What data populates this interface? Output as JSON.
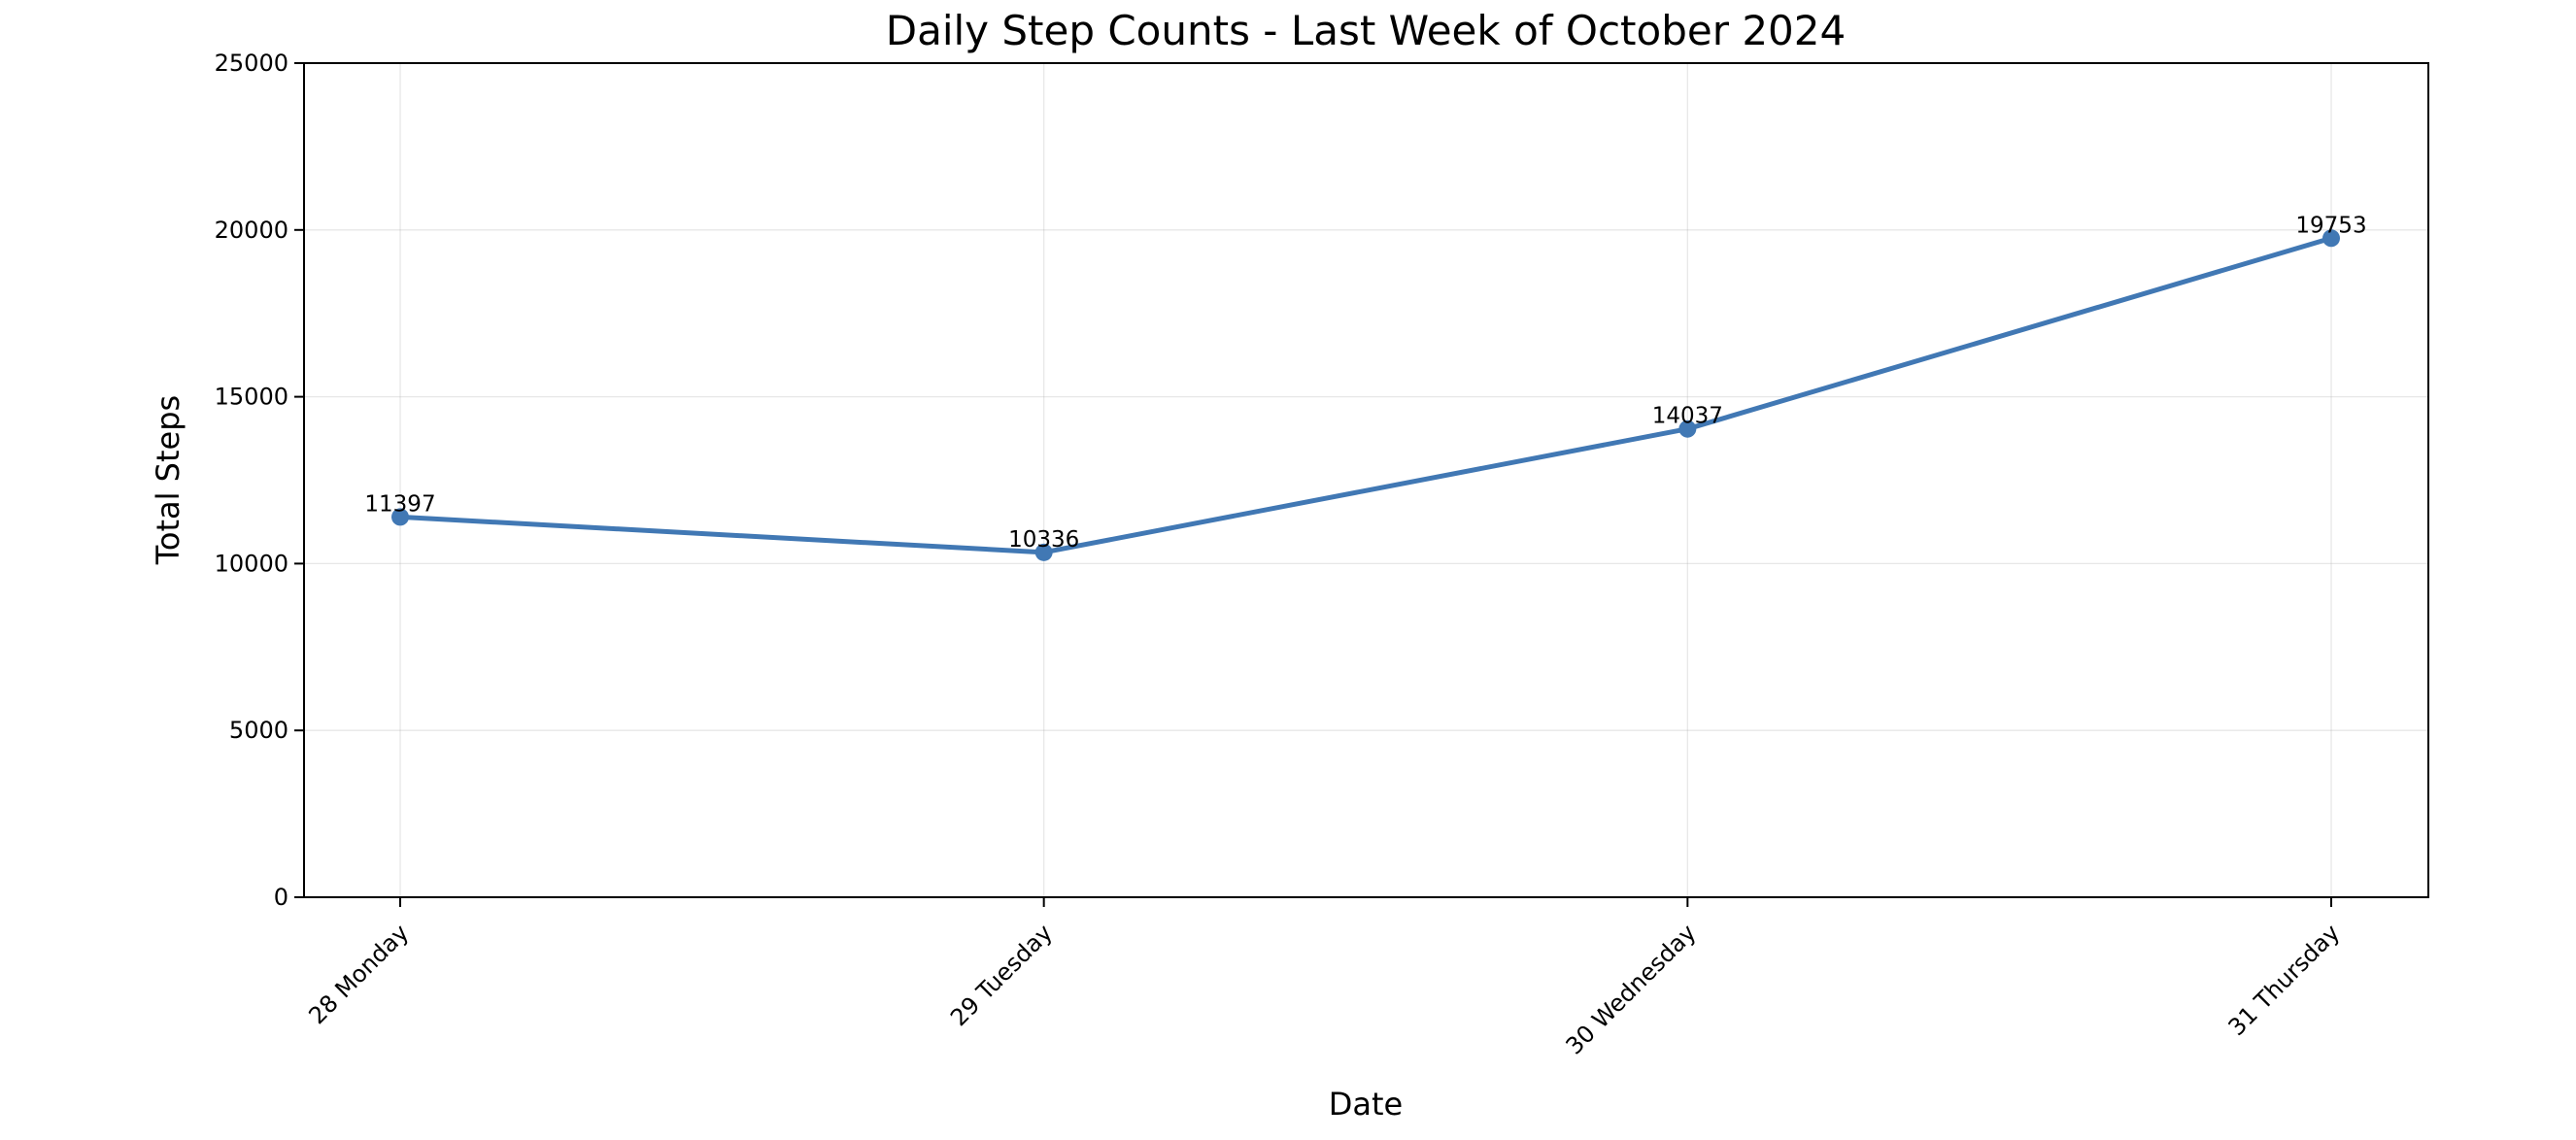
{
  "chart_data": {
    "type": "line",
    "title": "Daily Step Counts - Last Week of October 2024",
    "xlabel": "Date",
    "ylabel": "Total Steps",
    "categories": [
      "28 Monday",
      "29 Tuesday",
      "30 Wednesday",
      "31 Thursday"
    ],
    "series": [
      {
        "values": [
          11397,
          10336,
          14037,
          19753
        ],
        "data_labels": [
          "11397",
          "10336",
          "14037",
          "19753"
        ]
      }
    ],
    "ylim": [
      0,
      25000
    ],
    "yticks": [
      0,
      5000,
      10000,
      15000,
      20000,
      25000
    ],
    "ytick_labels": [
      "0",
      "5000",
      "10000",
      "15000",
      "20000",
      "25000"
    ],
    "grid": true,
    "line_color": "#4178b4",
    "marker": "circle"
  }
}
